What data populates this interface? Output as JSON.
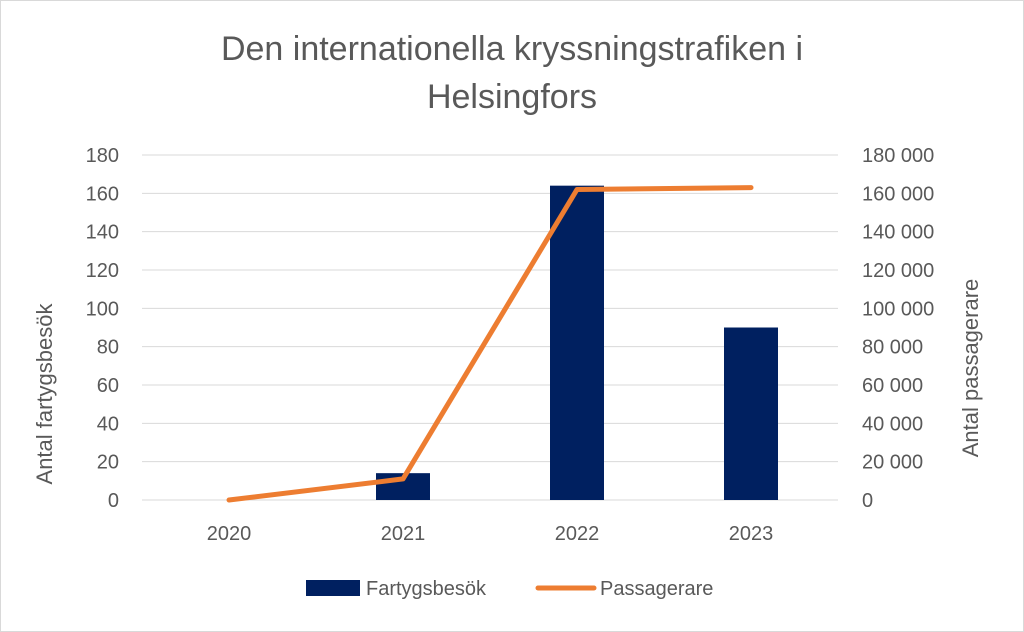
{
  "chart_data": {
    "type": "bar",
    "title": [
      "Den internationella kryssningstrafiken i",
      "Helsingfors"
    ],
    "categories": [
      "2020",
      "2021",
      "2022",
      "2023"
    ],
    "series": [
      {
        "name": "Fartygsbesök",
        "type": "bar",
        "axis": "left",
        "values": [
          0,
          14,
          164,
          90
        ],
        "color": "#002060"
      },
      {
        "name": "Passagerare",
        "type": "line",
        "axis": "right",
        "values": [
          0,
          11000,
          162000,
          163000
        ],
        "color": "#ED7D31"
      }
    ],
    "y_left": {
      "label": "Antal fartygsbesök",
      "min": 0,
      "max": 180,
      "ticks": [
        "0",
        "20",
        "40",
        "60",
        "80",
        "100",
        "120",
        "140",
        "160",
        "180"
      ]
    },
    "y_right": {
      "label": "Antal passagerare",
      "min": 0,
      "max": 180000,
      "ticks": [
        "0",
        "20 000",
        "40 000",
        "60 000",
        "80 000",
        "100 000",
        "120 000",
        "140 000",
        "160 000",
        "180 000"
      ]
    },
    "grid": true,
    "legend": "bottom"
  }
}
